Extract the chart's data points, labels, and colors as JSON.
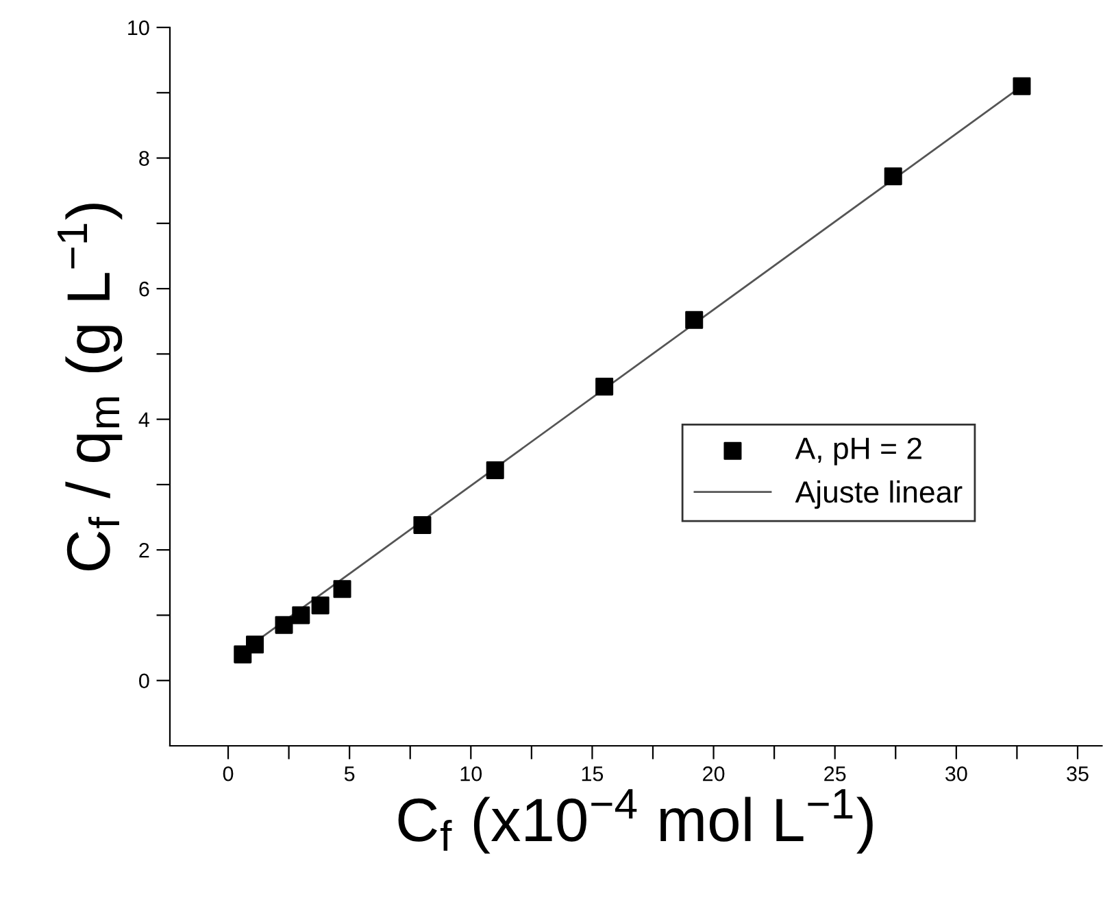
{
  "chart_data": {
    "type": "scatter",
    "xlabel": "C$_{f}$ (x10$^{−4}$ mol L$^{−1}$)",
    "ylabel": "C$_{f}$ / q$_{m}$ (g L$^{−1}$)",
    "series": [
      {
        "name": "A, pH = 2",
        "color": "#000000",
        "marker": "square",
        "x": [
          0.6,
          1.1,
          2.3,
          3.0,
          3.8,
          4.7,
          8.0,
          11.0,
          15.5,
          19.2,
          27.4,
          32.7
        ],
        "values": [
          0.4,
          0.55,
          0.85,
          1.0,
          1.15,
          1.4,
          2.38,
          3.22,
          4.5,
          5.52,
          7.72,
          9.1
        ]
      },
      {
        "name": "Ajuste linear",
        "type": "line",
        "color": "#555555",
        "line_style": "solid",
        "marker": "none",
        "x": [
          0.6,
          32.7
        ],
        "values": [
          0.45,
          9.1
        ]
      }
    ],
    "xlim": [
      -2.4,
      36
    ],
    "ylim": [
      -1,
      10
    ],
    "xticks": [
      0,
      {
        "value": 2.5,
        "label": null
      },
      5,
      {
        "value": 7.5,
        "label": null
      },
      10,
      {
        "value": 12.5,
        "label": null
      },
      15,
      {
        "value": 17.5,
        "label": null
      },
      20,
      {
        "value": 22.5,
        "label": null
      },
      25,
      {
        "value": 27.5,
        "label": null
      },
      30,
      {
        "value": 32.5,
        "label": null
      },
      35
    ],
    "yticks": [
      0,
      {
        "value": 1,
        "label": null
      },
      2,
      {
        "value": 3,
        "label": null
      },
      4,
      {
        "value": 5,
        "label": null
      },
      6,
      {
        "value": 7,
        "label": null
      },
      8,
      {
        "value": 9,
        "label": null
      },
      10
    ],
    "grid": false,
    "legend": "right"
  }
}
